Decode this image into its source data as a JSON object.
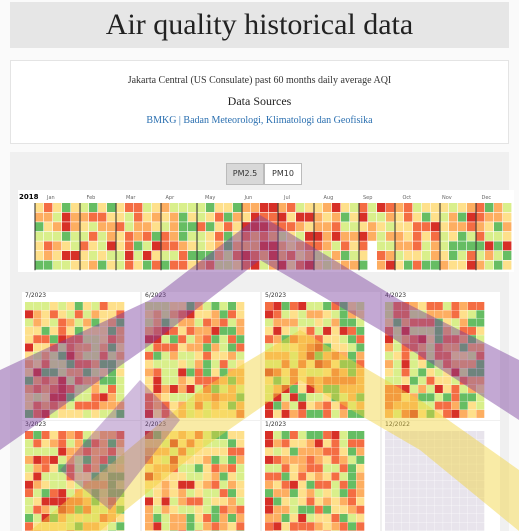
{
  "header": {
    "title": "Air quality historical data"
  },
  "info": {
    "description": "Jakarta Central (US Consulate) past 60 months daily average AQI",
    "sources_title": "Data Sources",
    "sources": "BMKG | Badan Meteorologi, Klimatologi dan Geofisika"
  },
  "tabs": [
    "PM2.5",
    "PM10"
  ],
  "year_view": {
    "year": "2018",
    "months": [
      "Jan",
      "Feb",
      "Mar",
      "Apr",
      "May",
      "Jun",
      "Jul",
      "Aug",
      "Sep",
      "Oct",
      "Nov",
      "Dec"
    ]
  },
  "monthly_panels": [
    "7/2023",
    "6/2023",
    "5/2023",
    "4/2023",
    "3/2023",
    "2/2023",
    "1/2023",
    "12/2022"
  ],
  "palette": [
    "#1a9850",
    "#66bd63",
    "#d9ef8b",
    "#fee08b",
    "#fdae61",
    "#f46d43",
    "#d73027"
  ]
}
